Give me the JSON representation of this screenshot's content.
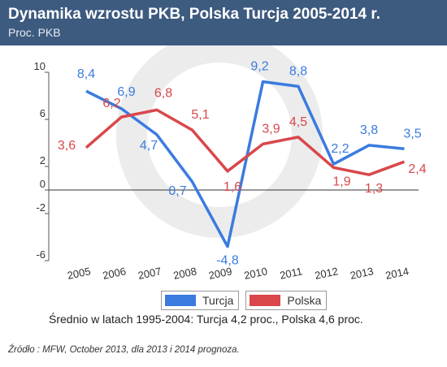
{
  "header": {
    "title": "Dynamika wzrostu PKB,  Polska Turcja 2005-2014 r.",
    "subtitle": "Proc. PKB"
  },
  "colors": {
    "header_bg": "#3d5a7f",
    "turcja": "#3b7be0",
    "polska": "#d9474b",
    "watermark": "#ececec"
  },
  "chart_data": {
    "type": "line",
    "x": [
      "2005",
      "2006",
      "2007",
      "2008",
      "2009",
      "2010",
      "2011",
      "2012",
      "2013",
      "2014"
    ],
    "series": [
      {
        "name": "Turcja",
        "values": [
          8.4,
          6.9,
          4.7,
          0.7,
          -4.8,
          9.2,
          8.8,
          2.2,
          3.8,
          3.5
        ],
        "labels": [
          "8,4",
          "6,9",
          "4,7",
          "0,7",
          "-4,8",
          "9,2",
          "8,8",
          "2,2",
          "3,8",
          "3,5"
        ]
      },
      {
        "name": "Polska",
        "values": [
          3.6,
          6.2,
          6.8,
          5.1,
          1.6,
          3.9,
          4.5,
          1.9,
          1.3,
          2.4
        ],
        "labels": [
          "3,6",
          "6,2",
          "6,8",
          "5,1",
          "1,6",
          "3,9",
          "4,5",
          "1,9",
          "1,3",
          "2,4"
        ]
      }
    ],
    "yticks": [
      10,
      6,
      2,
      0,
      -2,
      -6
    ],
    "ytick_labels": [
      "10",
      "6",
      "2",
      "0",
      "-2",
      "-6"
    ],
    "ylim": [
      -6,
      10
    ],
    "grid": false,
    "legend": "bottom"
  },
  "legend": {
    "turcja": "Turcja",
    "polska": "Polska"
  },
  "note": "Średnio w latach 1995-2004: Turcja 4,2 proc., Polska 4,6 proc.",
  "source": "Źródło : MFW, October 2013, dla 2013 i 2014 prognoza."
}
